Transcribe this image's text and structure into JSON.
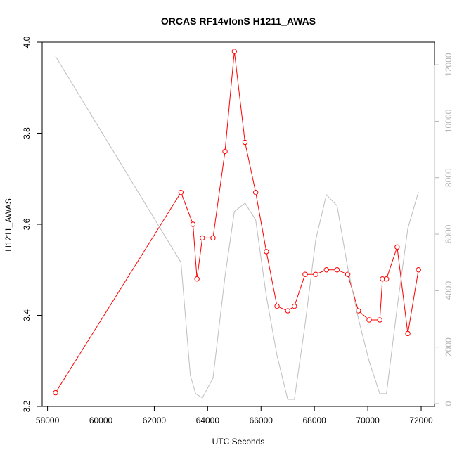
{
  "chart_data": {
    "type": "line",
    "title": "ORCAS RF14vlonS H1211_AWAS",
    "xlabel": "UTC Seconds",
    "ylabel": "H1211_AWAS",
    "xlim": [
      57800,
      72500
    ],
    "ylim": [
      3.2,
      4.0
    ],
    "y2lim": [
      -100,
      12800
    ],
    "x_ticks": [
      58000,
      60000,
      62000,
      64000,
      66000,
      68000,
      70000,
      72000
    ],
    "y_ticks": [
      3.2,
      3.4,
      3.6,
      3.8,
      4.0
    ],
    "y2_ticks": [
      0,
      2000,
      4000,
      6000,
      8000,
      10000,
      12000
    ],
    "grid": false,
    "series": [
      {
        "color": "#ff0000",
        "axis": "left",
        "style": "line+open-circle",
        "x": [
          58300,
          63000,
          63450,
          63600,
          63800,
          64200,
          64650,
          65000,
          65400,
          65800,
          66200,
          66600,
          67000,
          67250,
          67650,
          68050,
          68450,
          68850,
          69250,
          69650,
          70050,
          70450,
          70550,
          70700,
          71100,
          71500,
          71900
        ],
        "y": [
          3.23,
          3.67,
          3.6,
          3.48,
          3.57,
          3.57,
          3.76,
          3.98,
          3.78,
          3.67,
          3.54,
          3.42,
          3.41,
          3.42,
          3.49,
          3.49,
          3.5,
          3.5,
          3.49,
          3.41,
          3.39,
          3.39,
          3.48,
          3.48,
          3.55,
          3.36,
          3.5
        ]
      },
      {
        "color": "#bebebe",
        "axis": "right",
        "style": "line",
        "x": [
          58300,
          63000,
          63350,
          63550,
          63800,
          64200,
          64650,
          65000,
          65400,
          65800,
          66200,
          66600,
          67000,
          67250,
          67650,
          68050,
          68450,
          68850,
          69250,
          69650,
          70050,
          70450,
          70700,
          71100,
          71500,
          71900
        ],
        "y": [
          12300,
          5000,
          1000,
          350,
          200,
          900,
          4500,
          6800,
          7100,
          6500,
          3800,
          1700,
          150,
          150,
          2800,
          5800,
          7400,
          7000,
          4800,
          3000,
          1500,
          350,
          350,
          3400,
          6200,
          7500
        ]
      }
    ]
  }
}
